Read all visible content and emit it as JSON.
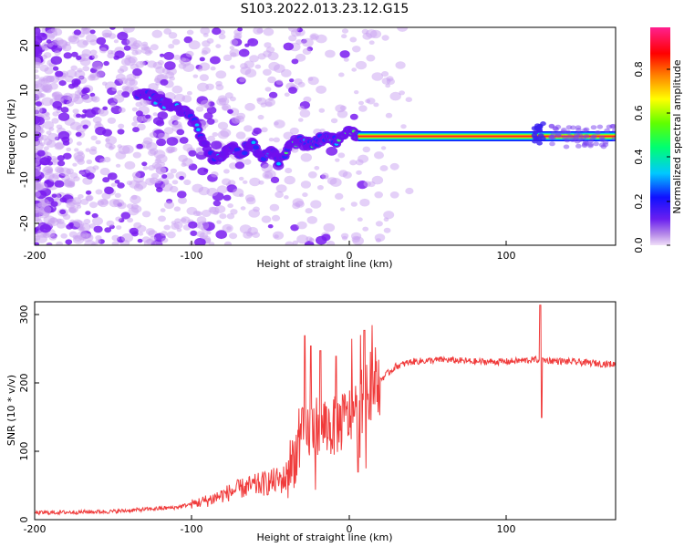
{
  "figure": {
    "title": "S103.2022.013.23.12.G15"
  },
  "chart_data": [
    {
      "type": "heatmap",
      "xlabel": "Height of straight line (km)",
      "ylabel": "Frequency (Hz)",
      "xlim": [
        -200,
        170
      ],
      "ylim": [
        -25,
        25
      ],
      "x_ticks": [
        "-200",
        "-100",
        "0",
        "100"
      ],
      "y_ticks": [
        "-20",
        "-10",
        "0",
        "10",
        "20"
      ],
      "ridge": {
        "x": [
          -135,
          -125,
          -115,
          -105,
          -98,
          -92,
          -86,
          -80,
          -74,
          -68,
          -62,
          -56,
          -50,
          -44,
          -38,
          -32,
          -26,
          -20,
          -14,
          -8,
          -4,
          0,
          2,
          6,
          120,
          170
        ],
        "y": [
          10,
          9,
          7,
          6,
          3,
          -2,
          -5,
          -4,
          -2,
          -4,
          -1,
          -5,
          -3,
          -6,
          -2,
          -1,
          -2,
          -1,
          0,
          -1,
          0,
          2,
          1,
          0,
          0,
          0
        ]
      },
      "colorbar": {
        "label": "Normalized spectral amplitude",
        "range": [
          0.0,
          1.0
        ],
        "ticks": [
          "0.0",
          "0.2",
          "0.4",
          "0.6",
          "0.8"
        ],
        "colormap": [
          "#e8cdf6",
          "#8b2cf0",
          "#2020ff",
          "#00c8ff",
          "#00ff40",
          "#ffff00",
          "#ff8000",
          "#ff0000",
          "#ff20a0"
        ]
      }
    },
    {
      "type": "line",
      "xlabel": "Height of straight line (km)",
      "ylabel": "SNR (10 * v/v)",
      "xlim": [
        -200,
        170
      ],
      "ylim": [
        0,
        320
      ],
      "x_ticks": [
        "-200",
        "-100",
        "0",
        "100"
      ],
      "y_ticks": [
        "0",
        "100",
        "200",
        "300"
      ],
      "color": "#f03c3c",
      "trend": {
        "x": [
          -200,
          -150,
          -110,
          -90,
          -70,
          -50,
          -40,
          -30,
          -20,
          -10,
          0,
          10,
          20,
          30,
          40,
          60,
          80,
          100,
          120,
          140,
          170
        ],
        "y": [
          10,
          12,
          18,
          28,
          45,
          55,
          60,
          120,
          140,
          135,
          150,
          180,
          205,
          225,
          232,
          235,
          232,
          232,
          235,
          232,
          228
        ]
      },
      "spikes": [
        {
          "x": -28,
          "y": 270
        },
        {
          "x": -24,
          "y": 255
        },
        {
          "x": -18,
          "y": 248
        },
        {
          "x": -8,
          "y": 240
        },
        {
          "x": 10,
          "y": 278
        },
        {
          "x": 122,
          "y": 315
        },
        {
          "x": 123,
          "y": 150
        },
        {
          "x": 6,
          "y": 70
        }
      ]
    }
  ]
}
